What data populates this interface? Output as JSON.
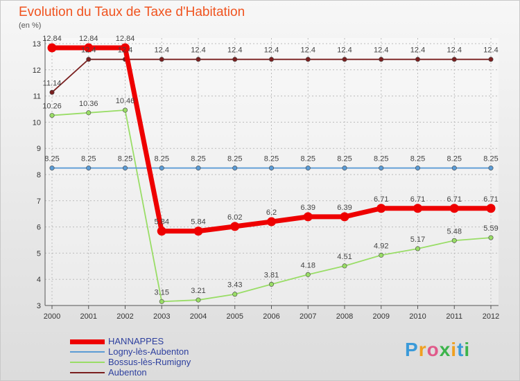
{
  "title": "Evolution du Taux de Taxe d'Habitation",
  "unit": "(en %)",
  "logo": {
    "text": "Proxiti",
    "letter_colors": [
      "#3a9ad9",
      "#f0a020",
      "#e05a8a",
      "#3cb44b",
      "#f0a020",
      "#3a9ad9",
      "#3cb44b"
    ]
  },
  "chart_data": {
    "type": "line",
    "x": [
      "2000",
      "2001",
      "2002",
      "2003",
      "2004",
      "2005",
      "2006",
      "2007",
      "2008",
      "2009",
      "2010",
      "2011",
      "2012"
    ],
    "ylim": [
      3,
      13
    ],
    "yticks": [
      3,
      4,
      5,
      6,
      7,
      8,
      9,
      10,
      11,
      12,
      13
    ],
    "series": [
      {
        "name": "HANNAPPES",
        "color": "#ee0000",
        "values": [
          12.84,
          12.84,
          12.84,
          5.84,
          5.84,
          6.02,
          6.2,
          6.39,
          6.39,
          6.71,
          6.71,
          6.71,
          6.71
        ],
        "labels": [
          "12.84",
          "12.84",
          "12.84",
          "5.84",
          "5.84",
          "6.02",
          "6.2",
          "6.39",
          "6.39",
          "6.71",
          "6.71",
          "6.71",
          "6.71"
        ]
      },
      {
        "name": "Logny-lès-Aubenton",
        "color": "#5b9bd5",
        "values": [
          8.25,
          8.25,
          8.25,
          8.25,
          8.25,
          8.25,
          8.25,
          8.25,
          8.25,
          8.25,
          8.25,
          8.25,
          8.25
        ],
        "labels": [
          "8.25",
          "8.25",
          "8.25",
          "8.25",
          "8.25",
          "8.25",
          "8.25",
          "8.25",
          "8.25",
          "8.25",
          "8.25",
          "8.25",
          "8.25"
        ]
      },
      {
        "name": "Bossus-lès-Rumigny",
        "color": "#99dd66",
        "values": [
          10.26,
          10.36,
          10.46,
          3.15,
          3.21,
          3.43,
          3.81,
          4.18,
          4.51,
          4.92,
          5.17,
          5.48,
          5.59
        ],
        "labels": [
          "10.26",
          "10.36",
          "10.46",
          "3.15",
          "3.21",
          "3.43",
          "3.81",
          "4.18",
          "4.51",
          "4.92",
          "5.17",
          "5.48",
          "5.59"
        ]
      },
      {
        "name": "Aubenton",
        "color": "#7a1f1f",
        "values": [
          11.14,
          12.4,
          12.4,
          12.4,
          12.4,
          12.4,
          12.4,
          12.4,
          12.4,
          12.4,
          12.4,
          12.4,
          12.4
        ],
        "labels": [
          "11.14",
          "12.4",
          "12.4",
          "12.4",
          "12.4",
          "12.4",
          "12.4",
          "12.4",
          "12.4",
          "12.4",
          "12.4",
          "12.4",
          "12.4"
        ]
      }
    ],
    "grid": true,
    "legend": "bottom-left"
  }
}
